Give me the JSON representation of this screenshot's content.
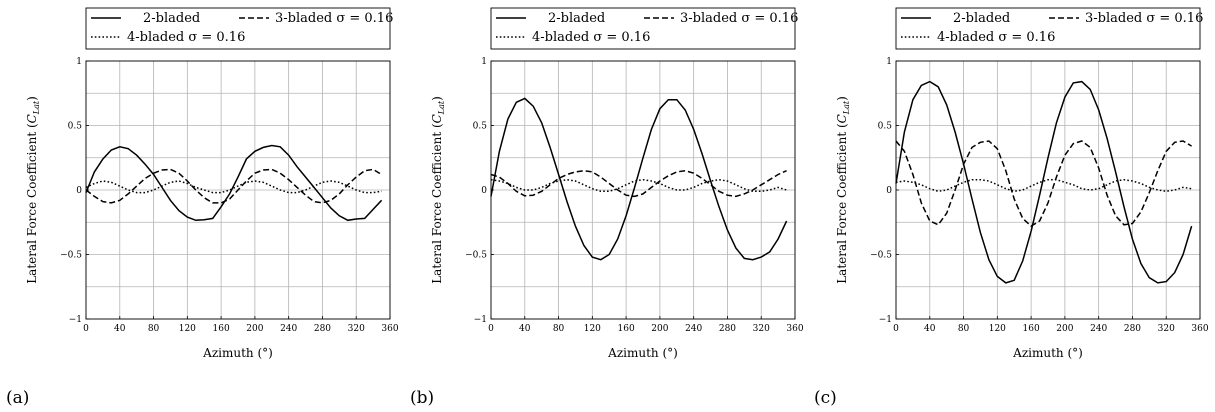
{
  "chart_data": [
    {
      "type": "line",
      "panel_label": "(a)",
      "xlabel": "Azimuth (°)",
      "ylabel_main": "Lateral Force Coefficient (",
      "ylabel_sym": "C",
      "ylabel_sub": "Lat",
      "ylabel_end": ")",
      "xlim": [
        0,
        360
      ],
      "ylim": [
        -1,
        1
      ],
      "x_ticks": [
        0,
        40,
        80,
        120,
        160,
        200,
        240,
        280,
        320,
        360
      ],
      "x_tick_labels": [
        "0",
        "40",
        "80",
        "120",
        "160",
        "200",
        "240",
        "280",
        "320",
        "360"
      ],
      "y_ticks": [
        -1,
        -0.5,
        0,
        0.5,
        1
      ],
      "y_tick_labels": [
        "−1",
        "−0.5",
        "0",
        "0.5",
        "1"
      ],
      "grid": true,
      "legend_position": "top",
      "series": [
        {
          "name": "2-bladed",
          "dash": "solid",
          "x": [
            0,
            10,
            20,
            30,
            40,
            50,
            60,
            70,
            80,
            90,
            100,
            110,
            120,
            130,
            140,
            150,
            160,
            170,
            180,
            190,
            200,
            210,
            220,
            230,
            240,
            250,
            260,
            270,
            280,
            290,
            300,
            310,
            320,
            330,
            340,
            350
          ],
          "y": [
            -0.02,
            0.14,
            0.24,
            0.31,
            0.335,
            0.32,
            0.27,
            0.2,
            0.12,
            0.02,
            -0.08,
            -0.16,
            -0.21,
            -0.235,
            -0.23,
            -0.22,
            -0.13,
            -0.03,
            0.1,
            0.24,
            0.3,
            0.33,
            0.345,
            0.335,
            0.27,
            0.18,
            0.1,
            0.02,
            -0.06,
            -0.14,
            -0.2,
            -0.235,
            -0.225,
            -0.22,
            -0.15,
            -0.08
          ]
        },
        {
          "name": "3-bladed σ = 0.16",
          "dash": "dashed",
          "x": [
            0,
            10,
            20,
            30,
            40,
            50,
            60,
            70,
            80,
            90,
            100,
            110,
            120,
            130,
            140,
            150,
            160,
            170,
            180,
            190,
            200,
            210,
            220,
            230,
            240,
            250,
            260,
            270,
            280,
            290,
            300,
            310,
            320,
            330,
            340,
            350
          ],
          "y": [
            0.0,
            -0.05,
            -0.09,
            -0.1,
            -0.08,
            -0.03,
            0.03,
            0.09,
            0.13,
            0.155,
            0.16,
            0.13,
            0.07,
            0.0,
            -0.06,
            -0.1,
            -0.1,
            -0.07,
            0.0,
            0.07,
            0.13,
            0.155,
            0.16,
            0.13,
            0.08,
            0.02,
            -0.04,
            -0.09,
            -0.1,
            -0.08,
            -0.03,
            0.04,
            0.1,
            0.15,
            0.16,
            0.12
          ]
        },
        {
          "name": "4-bladed σ = 0.16",
          "dash": "dotted",
          "x": [
            0,
            10,
            20,
            30,
            40,
            50,
            60,
            70,
            80,
            90,
            100,
            110,
            120,
            130,
            140,
            150,
            160,
            170,
            180,
            190,
            200,
            210,
            220,
            230,
            240,
            250,
            260,
            270,
            280,
            290,
            300,
            310,
            320,
            330,
            340,
            350
          ],
          "y": [
            0.02,
            0.05,
            0.07,
            0.06,
            0.03,
            0.0,
            -0.02,
            -0.02,
            0.0,
            0.03,
            0.06,
            0.07,
            0.05,
            0.02,
            0.0,
            -0.02,
            -0.02,
            0.0,
            0.03,
            0.06,
            0.07,
            0.06,
            0.03,
            0.0,
            -0.02,
            -0.02,
            0.0,
            0.03,
            0.06,
            0.07,
            0.06,
            0.03,
            0.0,
            -0.02,
            -0.02,
            -0.01
          ]
        }
      ]
    },
    {
      "type": "line",
      "panel_label": "(b)",
      "xlabel": "Azimuth (°)",
      "ylabel_main": "Lateral Force Coefficient (",
      "ylabel_sym": "C",
      "ylabel_sub": "Lat",
      "ylabel_end": ")",
      "xlim": [
        0,
        360
      ],
      "ylim": [
        -1,
        1
      ],
      "x_ticks": [
        0,
        40,
        80,
        120,
        160,
        200,
        240,
        280,
        320,
        360
      ],
      "x_tick_labels": [
        "0",
        "40",
        "80",
        "120",
        "160",
        "200",
        "240",
        "280",
        "320",
        "360"
      ],
      "y_ticks": [
        -1,
        -0.5,
        0,
        0.5,
        1
      ],
      "y_tick_labels": [
        "−1",
        "−0.5",
        "0",
        "0.5",
        "1"
      ],
      "grid": true,
      "legend_position": "top",
      "series": [
        {
          "name": "2-bladed",
          "dash": "solid",
          "x": [
            0,
            10,
            20,
            30,
            40,
            50,
            60,
            70,
            80,
            90,
            100,
            110,
            120,
            130,
            140,
            150,
            160,
            170,
            180,
            190,
            200,
            210,
            220,
            230,
            240,
            250,
            260,
            270,
            280,
            290,
            300,
            310,
            320,
            330,
            340,
            350
          ],
          "y": [
            -0.05,
            0.3,
            0.55,
            0.68,
            0.71,
            0.65,
            0.52,
            0.33,
            0.12,
            -0.09,
            -0.28,
            -0.43,
            -0.52,
            -0.54,
            -0.5,
            -0.38,
            -0.2,
            0.02,
            0.25,
            0.47,
            0.63,
            0.7,
            0.7,
            0.62,
            0.47,
            0.28,
            0.07,
            -0.13,
            -0.31,
            -0.45,
            -0.53,
            -0.54,
            -0.52,
            -0.48,
            -0.38,
            -0.24
          ]
        },
        {
          "name": "3-bladed σ = 0.16",
          "dash": "dashed",
          "x": [
            0,
            10,
            20,
            30,
            40,
            50,
            60,
            70,
            80,
            90,
            100,
            110,
            120,
            130,
            140,
            150,
            160,
            170,
            180,
            190,
            200,
            210,
            220,
            230,
            240,
            250,
            260,
            270,
            280,
            290,
            300,
            310,
            320,
            330,
            340,
            350
          ],
          "y": [
            0.12,
            0.1,
            0.05,
            -0.01,
            -0.045,
            -0.04,
            -0.01,
            0.04,
            0.09,
            0.12,
            0.14,
            0.15,
            0.14,
            0.1,
            0.05,
            0.0,
            -0.04,
            -0.05,
            -0.03,
            0.02,
            0.07,
            0.11,
            0.14,
            0.15,
            0.13,
            0.09,
            0.04,
            -0.01,
            -0.04,
            -0.05,
            -0.03,
            0.0,
            0.04,
            0.08,
            0.12,
            0.15
          ]
        },
        {
          "name": "4-bladed σ = 0.16",
          "dash": "dotted",
          "x": [
            0,
            10,
            20,
            30,
            40,
            50,
            60,
            70,
            80,
            90,
            100,
            110,
            120,
            130,
            140,
            150,
            160,
            170,
            180,
            190,
            200,
            210,
            220,
            230,
            240,
            250,
            260,
            270,
            280,
            290,
            300,
            310,
            320,
            330,
            340,
            350
          ],
          "y": [
            0.08,
            0.07,
            0.05,
            0.02,
            0.0,
            0.0,
            0.02,
            0.05,
            0.07,
            0.08,
            0.07,
            0.04,
            0.01,
            -0.01,
            -0.01,
            0.01,
            0.04,
            0.07,
            0.08,
            0.07,
            0.05,
            0.02,
            0.0,
            0.0,
            0.02,
            0.05,
            0.07,
            0.08,
            0.07,
            0.04,
            0.01,
            -0.01,
            -0.01,
            0.0,
            0.02,
            0.0
          ]
        }
      ]
    },
    {
      "type": "line",
      "panel_label": "(c)",
      "xlabel": "Azimuth (°)",
      "ylabel_main": "Lateral Force Coefficient (",
      "ylabel_sym": "C",
      "ylabel_sub": "Lat",
      "ylabel_end": ")",
      "xlim": [
        0,
        360
      ],
      "ylim": [
        -1,
        1
      ],
      "x_ticks": [
        0,
        40,
        80,
        120,
        160,
        200,
        240,
        280,
        320,
        360
      ],
      "x_tick_labels": [
        "0",
        "40",
        "80",
        "120",
        "160",
        "200",
        "240",
        "280",
        "320",
        "360"
      ],
      "y_ticks": [
        -1,
        -0.5,
        0,
        0.5,
        1
      ],
      "y_tick_labels": [
        "−1",
        "−0.5",
        "0",
        "0.5",
        "1"
      ],
      "grid": true,
      "legend_position": "top",
      "series": [
        {
          "name": "2-bladed",
          "dash": "solid",
          "x": [
            0,
            10,
            20,
            30,
            40,
            50,
            60,
            70,
            80,
            90,
            100,
            110,
            120,
            130,
            140,
            150,
            160,
            170,
            180,
            190,
            200,
            210,
            220,
            230,
            240,
            250,
            260,
            270,
            280,
            290,
            300,
            310,
            320,
            330,
            340,
            350
          ],
          "y": [
            0.05,
            0.45,
            0.7,
            0.81,
            0.84,
            0.8,
            0.66,
            0.45,
            0.2,
            -0.07,
            -0.33,
            -0.54,
            -0.67,
            -0.72,
            -0.7,
            -0.55,
            -0.32,
            -0.04,
            0.25,
            0.52,
            0.72,
            0.83,
            0.84,
            0.78,
            0.62,
            0.4,
            0.14,
            -0.13,
            -0.38,
            -0.57,
            -0.68,
            -0.72,
            -0.71,
            -0.64,
            -0.5,
            -0.28
          ]
        },
        {
          "name": "3-bladed σ = 0.16",
          "dash": "dashed",
          "x": [
            0,
            10,
            20,
            30,
            40,
            50,
            60,
            70,
            80,
            90,
            100,
            110,
            120,
            130,
            140,
            150,
            160,
            170,
            180,
            190,
            200,
            210,
            220,
            230,
            240,
            250,
            260,
            270,
            280,
            290,
            300,
            310,
            320,
            330,
            340,
            350
          ],
          "y": [
            0.38,
            0.3,
            0.12,
            -0.1,
            -0.24,
            -0.27,
            -0.18,
            0.0,
            0.2,
            0.33,
            0.37,
            0.38,
            0.32,
            0.15,
            -0.07,
            -0.22,
            -0.28,
            -0.24,
            -0.1,
            0.1,
            0.27,
            0.36,
            0.38,
            0.33,
            0.17,
            -0.04,
            -0.2,
            -0.27,
            -0.26,
            -0.17,
            -0.02,
            0.15,
            0.3,
            0.37,
            0.38,
            0.34
          ]
        },
        {
          "name": "4-bladed σ = 0.16",
          "dash": "dotted",
          "x": [
            0,
            10,
            20,
            30,
            40,
            50,
            60,
            70,
            80,
            90,
            100,
            110,
            120,
            130,
            140,
            150,
            160,
            170,
            180,
            190,
            200,
            210,
            220,
            230,
            240,
            250,
            260,
            270,
            280,
            290,
            300,
            310,
            320,
            330,
            340,
            350
          ],
          "y": [
            0.06,
            0.07,
            0.06,
            0.04,
            0.01,
            -0.01,
            0.0,
            0.03,
            0.06,
            0.08,
            0.08,
            0.07,
            0.04,
            0.01,
            -0.01,
            0.0,
            0.03,
            0.06,
            0.08,
            0.08,
            0.06,
            0.04,
            0.01,
            0.0,
            0.01,
            0.04,
            0.07,
            0.08,
            0.07,
            0.05,
            0.02,
            0.0,
            -0.01,
            0.0,
            0.02,
            0.01
          ]
        }
      ]
    }
  ]
}
